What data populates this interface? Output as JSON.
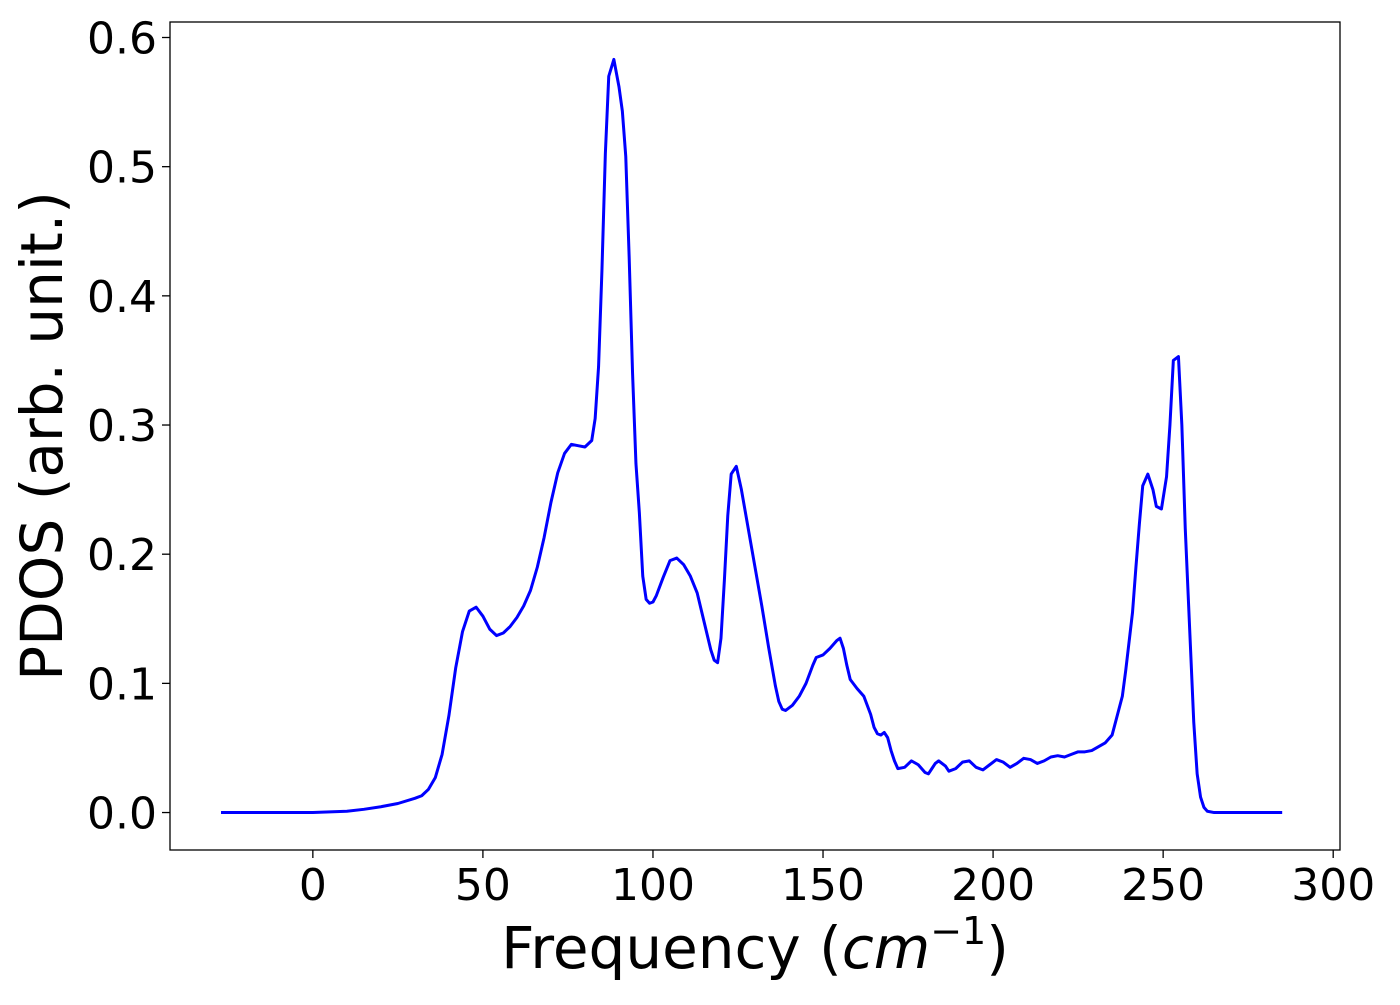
{
  "chart_data": {
    "type": "line",
    "title": "",
    "xlabel": "Frequency (",
    "xlabel_math": "cm",
    "xlabel_sup": "−1",
    "xlabel_close": ")",
    "ylabel": "PDOS (arb. unit.)",
    "xlim": [
      -42,
      302
    ],
    "ylim": [
      -0.029,
      0.612
    ],
    "xticks": [
      0,
      50,
      100,
      150,
      200,
      250,
      300
    ],
    "xtick_labels": [
      "0",
      "50",
      "100",
      "150",
      "200",
      "250",
      "300"
    ],
    "yticks": [
      0.0,
      0.1,
      0.2,
      0.3,
      0.4,
      0.5,
      0.6
    ],
    "ytick_labels": [
      "0.0",
      "0.1",
      "0.2",
      "0.3",
      "0.4",
      "0.5",
      "0.6"
    ],
    "grid": false,
    "legend": "none",
    "series": [
      {
        "color": "#0000ff",
        "points": [
          [
            -27,
            0.0
          ],
          [
            -10,
            0.0
          ],
          [
            0,
            0.0
          ],
          [
            5,
            0.0005
          ],
          [
            10,
            0.001
          ],
          [
            15,
            0.0025
          ],
          [
            20,
            0.0045
          ],
          [
            25,
            0.007
          ],
          [
            30,
            0.011
          ],
          [
            32,
            0.013
          ],
          [
            34,
            0.018
          ],
          [
            36,
            0.027
          ],
          [
            38,
            0.045
          ],
          [
            40,
            0.075
          ],
          [
            42,
            0.112
          ],
          [
            44,
            0.14
          ],
          [
            46,
            0.156
          ],
          [
            48,
            0.159
          ],
          [
            50,
            0.152
          ],
          [
            52,
            0.142
          ],
          [
            54,
            0.137
          ],
          [
            56,
            0.139
          ],
          [
            58,
            0.144
          ],
          [
            60,
            0.151
          ],
          [
            62,
            0.16
          ],
          [
            64,
            0.172
          ],
          [
            66,
            0.19
          ],
          [
            68,
            0.213
          ],
          [
            70,
            0.24
          ],
          [
            72,
            0.263
          ],
          [
            74,
            0.278
          ],
          [
            76,
            0.285
          ],
          [
            78,
            0.284
          ],
          [
            80,
            0.283
          ],
          [
            82,
            0.288
          ],
          [
            83,
            0.305
          ],
          [
            84,
            0.345
          ],
          [
            85,
            0.42
          ],
          [
            86,
            0.51
          ],
          [
            87,
            0.57
          ],
          [
            88.5,
            0.583
          ],
          [
            90,
            0.562
          ],
          [
            91,
            0.543
          ],
          [
            92,
            0.508
          ],
          [
            93,
            0.43
          ],
          [
            94,
            0.34
          ],
          [
            95,
            0.27
          ],
          [
            96,
            0.232
          ],
          [
            97,
            0.183
          ],
          [
            98,
            0.165
          ],
          [
            99,
            0.162
          ],
          [
            100,
            0.163
          ],
          [
            101,
            0.168
          ],
          [
            103,
            0.182
          ],
          [
            105,
            0.195
          ],
          [
            107,
            0.197
          ],
          [
            109,
            0.192
          ],
          [
            111,
            0.183
          ],
          [
            113,
            0.17
          ],
          [
            115,
            0.148
          ],
          [
            117,
            0.126
          ],
          [
            118,
            0.118
          ],
          [
            119,
            0.116
          ],
          [
            120,
            0.135
          ],
          [
            121,
            0.18
          ],
          [
            122,
            0.23
          ],
          [
            123,
            0.262
          ],
          [
            124.5,
            0.268
          ],
          [
            126,
            0.25
          ],
          [
            128,
            0.22
          ],
          [
            130,
            0.19
          ],
          [
            132,
            0.16
          ],
          [
            134,
            0.128
          ],
          [
            136,
            0.098
          ],
          [
            137,
            0.086
          ],
          [
            138,
            0.08
          ],
          [
            139,
            0.079
          ],
          [
            141,
            0.083
          ],
          [
            143,
            0.09
          ],
          [
            145,
            0.1
          ],
          [
            147,
            0.114
          ],
          [
            148,
            0.12
          ],
          [
            150,
            0.122
          ],
          [
            152,
            0.127
          ],
          [
            154,
            0.133
          ],
          [
            155,
            0.135
          ],
          [
            156,
            0.127
          ],
          [
            157,
            0.114
          ],
          [
            158,
            0.103
          ],
          [
            160,
            0.096
          ],
          [
            162,
            0.09
          ],
          [
            164,
            0.076
          ],
          [
            165,
            0.066
          ],
          [
            166,
            0.061
          ],
          [
            167,
            0.06
          ],
          [
            168,
            0.062
          ],
          [
            169,
            0.058
          ],
          [
            170,
            0.048
          ],
          [
            171,
            0.04
          ],
          [
            172,
            0.034
          ],
          [
            174,
            0.035
          ],
          [
            176,
            0.04
          ],
          [
            178,
            0.037
          ],
          [
            180,
            0.031
          ],
          [
            181,
            0.03
          ],
          [
            182,
            0.034
          ],
          [
            183,
            0.038
          ],
          [
            184,
            0.04
          ],
          [
            186,
            0.036
          ],
          [
            187,
            0.032
          ],
          [
            189,
            0.034
          ],
          [
            191,
            0.039
          ],
          [
            193,
            0.04
          ],
          [
            195,
            0.035
          ],
          [
            197,
            0.033
          ],
          [
            199,
            0.037
          ],
          [
            201,
            0.041
          ],
          [
            203,
            0.039
          ],
          [
            205,
            0.035
          ],
          [
            207,
            0.038
          ],
          [
            209,
            0.042
          ],
          [
            211,
            0.041
          ],
          [
            213,
            0.038
          ],
          [
            215,
            0.04
          ],
          [
            217,
            0.043
          ],
          [
            219,
            0.044
          ],
          [
            221,
            0.043
          ],
          [
            223,
            0.045
          ],
          [
            225,
            0.047
          ],
          [
            227,
            0.047
          ],
          [
            229,
            0.048
          ],
          [
            231,
            0.051
          ],
          [
            233,
            0.054
          ],
          [
            235,
            0.06
          ],
          [
            236,
            0.07
          ],
          [
            238,
            0.09
          ],
          [
            239,
            0.11
          ],
          [
            241,
            0.155
          ],
          [
            242,
            0.19
          ],
          [
            243,
            0.223
          ],
          [
            244,
            0.253
          ],
          [
            245.5,
            0.262
          ],
          [
            247,
            0.25
          ],
          [
            248,
            0.237
          ],
          [
            249.5,
            0.235
          ],
          [
            251,
            0.26
          ],
          [
            252,
            0.3
          ],
          [
            253,
            0.35
          ],
          [
            254.5,
            0.353
          ],
          [
            255.5,
            0.3
          ],
          [
            256.5,
            0.22
          ],
          [
            258,
            0.13
          ],
          [
            259,
            0.07
          ],
          [
            260,
            0.03
          ],
          [
            261,
            0.012
          ],
          [
            262,
            0.004
          ],
          [
            263,
            0.001
          ],
          [
            265,
            0.0
          ],
          [
            270,
            0.0
          ],
          [
            285,
            0.0
          ]
        ]
      }
    ]
  }
}
